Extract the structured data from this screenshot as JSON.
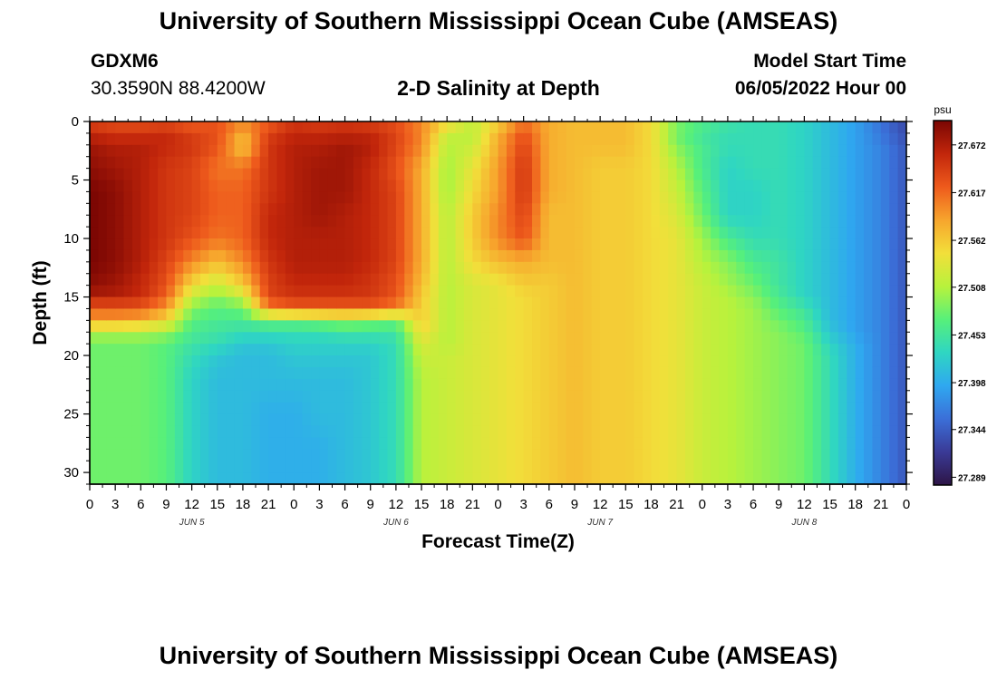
{
  "page": {
    "title": "University of Southern Mississippi Ocean Cube (AMSEAS)",
    "footer_title": "University of Southern Mississippi Ocean Cube (AMSEAS)",
    "station": "GDXM6",
    "coordinates": "30.3590N  88.4200W",
    "plot_title": "2-D Salinity at Depth",
    "model_start_label": "Model Start Time",
    "model_start_value": "06/05/2022 Hour 00"
  },
  "chart_data": {
    "type": "heatmap",
    "title": "2-D Salinity at Depth",
    "xlabel": "Forecast Time(Z)",
    "ylabel": "Depth (ft)",
    "x_tick_labels": [
      "0",
      "3",
      "6",
      "9",
      "12",
      "15",
      "18",
      "21",
      "0",
      "3",
      "6",
      "9",
      "12",
      "15",
      "18",
      "21",
      "0",
      "3",
      "6",
      "9",
      "12",
      "15",
      "18",
      "21",
      "0",
      "3",
      "6",
      "9",
      "12",
      "15",
      "18",
      "21",
      "0"
    ],
    "x_range_hours": [
      0,
      96
    ],
    "day_labels": [
      {
        "label": "JUN 5",
        "hour": 12
      },
      {
        "label": "JUN 6",
        "hour": 36
      },
      {
        "label": "JUN 7",
        "hour": 60
      },
      {
        "label": "JUN 8",
        "hour": 84
      }
    ],
    "y_ticks": [
      "0",
      "5",
      "10",
      "15",
      "20",
      "25",
      "30"
    ],
    "y_range_ft": [
      0,
      31
    ],
    "colorbar": {
      "units": "psu",
      "min": 27.28,
      "max": 27.7,
      "tick_labels": [
        "27.672",
        "27.617",
        "27.562",
        "27.508",
        "27.453",
        "27.398",
        "27.344",
        "27.289"
      ],
      "colors": [
        "#2d1546",
        "#3a3a96",
        "#3b6fd8",
        "#2fa8f0",
        "#2fd6c2",
        "#57f07a",
        "#b8f23c",
        "#f2df3a",
        "#f7a52d",
        "#ee5a1c",
        "#c2260b",
        "#7a0603"
      ]
    },
    "depths_ft": [
      0,
      1,
      2,
      4,
      6,
      8,
      10,
      12,
      14,
      15,
      16,
      17,
      18,
      19,
      20,
      22,
      25,
      28,
      31
    ],
    "times_h": [
      0,
      3,
      6,
      9,
      12,
      15,
      18,
      21,
      24,
      27,
      30,
      33,
      36,
      39,
      42,
      45,
      48,
      51,
      54,
      57,
      60,
      63,
      66,
      69,
      72,
      75,
      78,
      81,
      84,
      87,
      90,
      93,
      96
    ],
    "salinity": [
      [
        27.64,
        27.63,
        27.63,
        27.63,
        27.62,
        27.63,
        27.6,
        27.62,
        27.65,
        27.64,
        27.65,
        27.64,
        27.63,
        27.6,
        27.56,
        27.52,
        27.55,
        27.61,
        27.58,
        27.57,
        27.57,
        27.57,
        27.55,
        27.49,
        27.47,
        27.45,
        27.44,
        27.44,
        27.43,
        27.41,
        27.39,
        27.36,
        27.33
      ],
      [
        27.66,
        27.65,
        27.65,
        27.66,
        27.64,
        27.63,
        27.58,
        27.64,
        27.66,
        27.66,
        27.66,
        27.66,
        27.64,
        27.6,
        27.52,
        27.51,
        27.58,
        27.63,
        27.58,
        27.57,
        27.57,
        27.57,
        27.55,
        27.48,
        27.45,
        27.44,
        27.44,
        27.44,
        27.43,
        27.41,
        27.39,
        27.36,
        27.33
      ],
      [
        27.68,
        27.67,
        27.67,
        27.66,
        27.65,
        27.63,
        27.56,
        27.65,
        27.67,
        27.67,
        27.68,
        27.67,
        27.64,
        27.6,
        27.51,
        27.52,
        27.58,
        27.64,
        27.58,
        27.57,
        27.57,
        27.57,
        27.55,
        27.49,
        27.46,
        27.44,
        27.44,
        27.44,
        27.43,
        27.41,
        27.39,
        27.37,
        27.34
      ],
      [
        27.69,
        27.68,
        27.67,
        27.65,
        27.64,
        27.61,
        27.61,
        27.65,
        27.67,
        27.68,
        27.68,
        27.66,
        27.63,
        27.58,
        27.5,
        27.54,
        27.59,
        27.65,
        27.58,
        27.57,
        27.56,
        27.56,
        27.55,
        27.51,
        27.46,
        27.43,
        27.44,
        27.44,
        27.43,
        27.41,
        27.39,
        27.37,
        27.34
      ],
      [
        27.7,
        27.69,
        27.67,
        27.65,
        27.64,
        27.62,
        27.62,
        27.65,
        27.67,
        27.68,
        27.68,
        27.66,
        27.64,
        27.58,
        27.5,
        27.55,
        27.59,
        27.65,
        27.58,
        27.57,
        27.56,
        27.56,
        27.55,
        27.52,
        27.47,
        27.43,
        27.43,
        27.44,
        27.43,
        27.41,
        27.39,
        27.37,
        27.34
      ],
      [
        27.7,
        27.69,
        27.67,
        27.65,
        27.64,
        27.62,
        27.62,
        27.66,
        27.67,
        27.68,
        27.67,
        27.66,
        27.64,
        27.58,
        27.51,
        27.56,
        27.6,
        27.64,
        27.57,
        27.57,
        27.56,
        27.56,
        27.55,
        27.53,
        27.48,
        27.43,
        27.43,
        27.44,
        27.43,
        27.41,
        27.39,
        27.37,
        27.34
      ],
      [
        27.7,
        27.69,
        27.67,
        27.65,
        27.63,
        27.61,
        27.62,
        27.66,
        27.67,
        27.67,
        27.67,
        27.66,
        27.64,
        27.58,
        27.51,
        27.56,
        27.6,
        27.63,
        27.57,
        27.57,
        27.56,
        27.56,
        27.55,
        27.54,
        27.5,
        27.46,
        27.44,
        27.44,
        27.43,
        27.41,
        27.39,
        27.37,
        27.34
      ],
      [
        27.7,
        27.69,
        27.67,
        27.64,
        27.6,
        27.57,
        27.6,
        27.65,
        27.67,
        27.67,
        27.67,
        27.66,
        27.64,
        27.58,
        27.51,
        27.55,
        27.57,
        27.58,
        27.57,
        27.57,
        27.56,
        27.56,
        27.55,
        27.54,
        27.51,
        27.49,
        27.46,
        27.45,
        27.43,
        27.41,
        27.39,
        27.37,
        27.34
      ],
      [
        27.69,
        27.68,
        27.66,
        27.63,
        27.55,
        27.52,
        27.56,
        27.64,
        27.66,
        27.66,
        27.66,
        27.65,
        27.63,
        27.57,
        27.51,
        27.53,
        27.54,
        27.56,
        27.56,
        27.57,
        27.56,
        27.56,
        27.55,
        27.54,
        27.52,
        27.5,
        27.48,
        27.45,
        27.43,
        27.41,
        27.39,
        27.37,
        27.34
      ],
      [
        27.67,
        27.67,
        27.66,
        27.62,
        27.52,
        27.49,
        27.52,
        27.64,
        27.65,
        27.65,
        27.65,
        27.65,
        27.63,
        27.56,
        27.51,
        27.53,
        27.54,
        27.55,
        27.56,
        27.57,
        27.56,
        27.56,
        27.55,
        27.54,
        27.52,
        27.51,
        27.49,
        27.46,
        27.43,
        27.41,
        27.39,
        27.37,
        27.34
      ],
      [
        27.62,
        27.62,
        27.62,
        27.59,
        27.49,
        27.47,
        27.48,
        27.6,
        27.62,
        27.62,
        27.62,
        27.62,
        27.6,
        27.56,
        27.51,
        27.53,
        27.54,
        27.55,
        27.56,
        27.57,
        27.56,
        27.56,
        27.55,
        27.54,
        27.52,
        27.51,
        27.5,
        27.47,
        27.45,
        27.41,
        27.39,
        27.37,
        27.34
      ],
      [
        27.59,
        27.59,
        27.58,
        27.55,
        27.47,
        27.46,
        27.46,
        27.48,
        27.48,
        27.49,
        27.5,
        27.49,
        27.48,
        27.56,
        27.51,
        27.53,
        27.54,
        27.55,
        27.56,
        27.57,
        27.56,
        27.56,
        27.55,
        27.54,
        27.52,
        27.51,
        27.5,
        27.48,
        27.46,
        27.41,
        27.39,
        27.37,
        27.34
      ],
      [
        27.51,
        27.51,
        27.51,
        27.5,
        27.46,
        27.45,
        27.44,
        27.44,
        27.44,
        27.44,
        27.45,
        27.45,
        27.45,
        27.55,
        27.51,
        27.53,
        27.54,
        27.55,
        27.56,
        27.57,
        27.56,
        27.56,
        27.55,
        27.54,
        27.52,
        27.51,
        27.5,
        27.49,
        27.47,
        27.42,
        27.39,
        27.37,
        27.34
      ],
      [
        27.48,
        27.48,
        27.48,
        27.47,
        27.45,
        27.44,
        27.42,
        27.42,
        27.43,
        27.43,
        27.43,
        27.43,
        27.44,
        27.53,
        27.51,
        27.53,
        27.54,
        27.55,
        27.56,
        27.57,
        27.56,
        27.56,
        27.55,
        27.54,
        27.52,
        27.51,
        27.5,
        27.49,
        27.48,
        27.43,
        27.4,
        27.37,
        27.34
      ],
      [
        27.48,
        27.48,
        27.48,
        27.47,
        27.44,
        27.42,
        27.41,
        27.41,
        27.42,
        27.42,
        27.42,
        27.42,
        27.44,
        27.52,
        27.52,
        27.53,
        27.54,
        27.55,
        27.56,
        27.57,
        27.56,
        27.56,
        27.55,
        27.54,
        27.52,
        27.51,
        27.5,
        27.49,
        27.48,
        27.44,
        27.4,
        27.37,
        27.34
      ],
      [
        27.48,
        27.48,
        27.48,
        27.47,
        27.43,
        27.41,
        27.41,
        27.41,
        27.41,
        27.41,
        27.41,
        27.42,
        27.44,
        27.51,
        27.52,
        27.53,
        27.54,
        27.55,
        27.56,
        27.57,
        27.56,
        27.56,
        27.55,
        27.54,
        27.52,
        27.51,
        27.5,
        27.49,
        27.48,
        27.44,
        27.4,
        27.37,
        27.34
      ],
      [
        27.48,
        27.48,
        27.48,
        27.47,
        27.43,
        27.41,
        27.41,
        27.4,
        27.4,
        27.41,
        27.41,
        27.42,
        27.44,
        27.51,
        27.52,
        27.53,
        27.54,
        27.55,
        27.56,
        27.57,
        27.56,
        27.56,
        27.55,
        27.54,
        27.52,
        27.51,
        27.5,
        27.49,
        27.48,
        27.44,
        27.4,
        27.37,
        27.34
      ],
      [
        27.48,
        27.48,
        27.48,
        27.47,
        27.43,
        27.41,
        27.41,
        27.4,
        27.4,
        27.4,
        27.41,
        27.42,
        27.44,
        27.51,
        27.52,
        27.53,
        27.54,
        27.55,
        27.56,
        27.57,
        27.56,
        27.56,
        27.55,
        27.54,
        27.52,
        27.51,
        27.5,
        27.49,
        27.48,
        27.44,
        27.4,
        27.37,
        27.34
      ],
      [
        27.48,
        27.48,
        27.48,
        27.47,
        27.43,
        27.41,
        27.41,
        27.4,
        27.4,
        27.4,
        27.41,
        27.42,
        27.44,
        27.51,
        27.52,
        27.53,
        27.54,
        27.55,
        27.56,
        27.57,
        27.56,
        27.56,
        27.55,
        27.54,
        27.52,
        27.51,
        27.5,
        27.49,
        27.48,
        27.44,
        27.4,
        27.37,
        27.34
      ]
    ]
  }
}
